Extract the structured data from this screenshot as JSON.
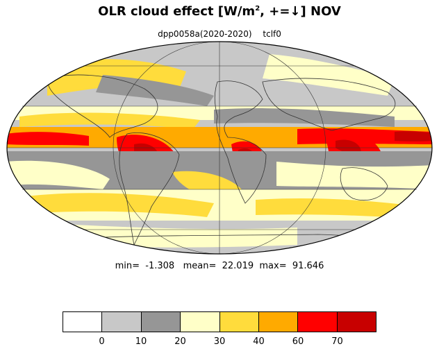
{
  "title": {
    "text": "OLR cloud effect [W/m",
    "superscript": "2",
    "text_after": ", +=↓]  NOV"
  },
  "subtitle": {
    "experiment": "dpp0058a(2020-2020)",
    "variable": "tclf0"
  },
  "stats": {
    "text": "min=  -1.308   mean=  22.019  max=  91.646",
    "min": -1.308,
    "mean": 22.019,
    "max": 91.646
  },
  "colorbar": {
    "colors": [
      "#ffffff",
      "#c8c8c8",
      "#969696",
      "#ffffc8",
      "#ffdc3c",
      "#ffaa00",
      "#ff0000",
      "#c80000"
    ],
    "tick_labels": [
      "0",
      "10",
      "20",
      "30",
      "40",
      "60",
      "70"
    ]
  },
  "map": {
    "projection": "Mollweide",
    "ocean_default_color": "#c8c8c8",
    "coastline_color": "#333333",
    "grid_color": "#333333"
  }
}
